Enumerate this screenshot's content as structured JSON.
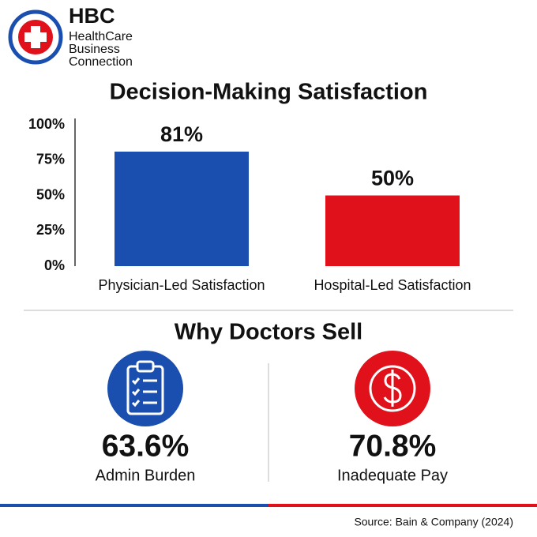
{
  "header": {
    "logo": "HBC",
    "name_lines": [
      "HealthCare",
      "Business",
      "Connection"
    ]
  },
  "chart_data": {
    "type": "bar",
    "title": "Decision-Making Satisfaction",
    "categories": [
      "Physician-Led Satisfaction",
      "Hospital-Led Satisfaction"
    ],
    "values": [
      81,
      50
    ],
    "value_labels": [
      "81%",
      "50%"
    ],
    "colors": [
      "#1a4fb0",
      "#e0111b"
    ],
    "ylim": [
      0,
      100
    ],
    "yticks": [
      {
        "value": 0,
        "label": "0%"
      },
      {
        "value": 25,
        "label": "25%"
      },
      {
        "value": 50,
        "label": "50%"
      },
      {
        "value": 75,
        "label": "75%"
      },
      {
        "value": 100,
        "label": "100%"
      }
    ]
  },
  "reasons": {
    "title": "Why Doctors Sell",
    "items": [
      {
        "value": "63.6%",
        "label": "Admin Burden"
      },
      {
        "value": "70.8%",
        "label": "Inadequate Pay"
      }
    ]
  },
  "source": "Source: Bain & Company (2024)"
}
